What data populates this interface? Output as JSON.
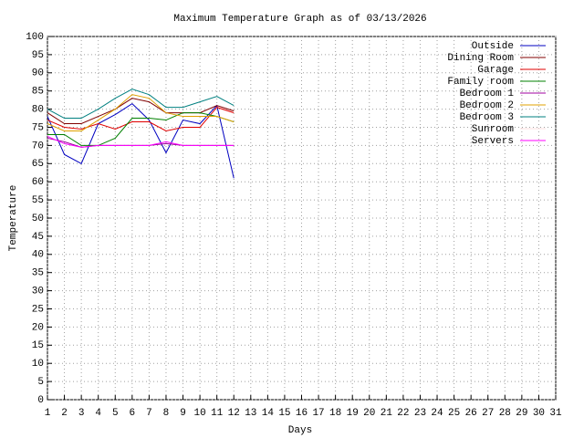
{
  "chart_data": {
    "type": "line",
    "title": "Maximum Temperature Graph as of 03/13/2026",
    "x_label": "Days",
    "y_label": "Temperature",
    "x": [
      1,
      2,
      3,
      4,
      5,
      6,
      7,
      8,
      9,
      10,
      11,
      12
    ],
    "series": [
      {
        "name": "Outside",
        "color": "#0000c0",
        "values": [
          78,
          67.5,
          65,
          76,
          78.5,
          81.5,
          77,
          68,
          77,
          76,
          81,
          61
        ]
      },
      {
        "name": "Dining Room",
        "color": "#800000",
        "values": [
          79,
          76,
          76,
          78,
          80,
          83,
          82,
          79,
          79,
          79,
          81,
          79.5
        ]
      },
      {
        "name": "Garage",
        "color": "#e00000",
        "values": [
          77,
          75,
          74.5,
          76,
          74.5,
          76.5,
          76.5,
          74,
          75,
          75,
          80.5,
          79
        ]
      },
      {
        "name": "Family room",
        "color": "#008000",
        "values": [
          73,
          73,
          70,
          70,
          72,
          77.5,
          77.5,
          77,
          79,
          79,
          78,
          76.5
        ]
      },
      {
        "name": "Bedroom 1",
        "color": "#a000a0",
        "values": [
          72,
          71,
          69.5,
          70,
          70,
          70,
          70,
          70.5,
          70,
          70,
          70,
          70
        ]
      },
      {
        "name": "Bedroom 2",
        "color": "#e0a000",
        "values": [
          76,
          74,
          74,
          77,
          80,
          84,
          83,
          79,
          78,
          78,
          78,
          76.5
        ]
      },
      {
        "name": "Bedroom 3",
        "color": "#008080",
        "values": [
          80,
          77.5,
          77.5,
          80,
          83,
          85.5,
          84,
          80.5,
          80.5,
          82,
          83.5,
          81
        ]
      },
      {
        "name": "Sunroom",
        "color": "#ffe0e0",
        "values": [
          null,
          null,
          null,
          null,
          null,
          null,
          null,
          null,
          null,
          null,
          null,
          null
        ]
      },
      {
        "name": "Servers",
        "color": "#ff00ff",
        "values": [
          72.5,
          70.5,
          69.5,
          70,
          70,
          70,
          70,
          71,
          70,
          70,
          70,
          70
        ]
      }
    ],
    "xlim": [
      1,
      31
    ],
    "xticks": [
      1,
      2,
      3,
      4,
      5,
      6,
      7,
      8,
      9,
      10,
      11,
      12,
      13,
      14,
      15,
      16,
      17,
      18,
      19,
      20,
      21,
      22,
      23,
      24,
      25,
      26,
      27,
      28,
      29,
      30,
      31
    ],
    "ylim": [
      0,
      100
    ],
    "yticks": [
      0,
      5,
      10,
      15,
      20,
      25,
      30,
      35,
      40,
      45,
      50,
      55,
      60,
      65,
      70,
      75,
      80,
      85,
      90,
      95,
      100
    ],
    "grid": true,
    "legend": "top-right"
  }
}
